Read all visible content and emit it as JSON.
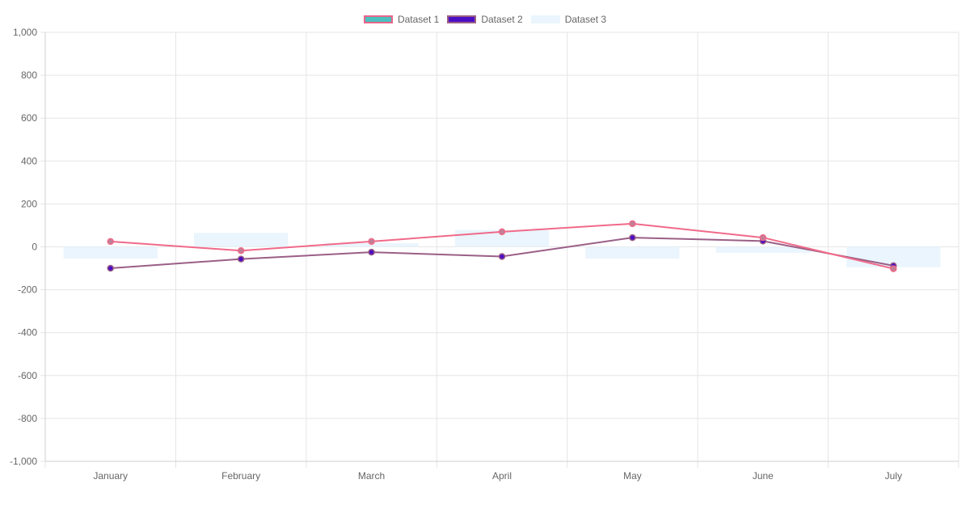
{
  "chart_data": {
    "type": "bar",
    "categories": [
      "January",
      "February",
      "March",
      "April",
      "May",
      "June",
      "July"
    ],
    "ylim": [
      -1000,
      1000
    ],
    "y_ticks": [
      1000,
      800,
      600,
      400,
      200,
      0,
      -200,
      -400,
      -600,
      -800,
      -1000
    ],
    "y_tick_labels": [
      "1,000",
      "800",
      "600",
      "400",
      "200",
      "0",
      "-200",
      "-400",
      "-600",
      "-800",
      "-1,000"
    ],
    "grid": true,
    "legend_position": "top",
    "series": [
      {
        "name": "Dataset 1",
        "type": "line",
        "values": [
          25,
          -18,
          25,
          70,
          108,
          43,
          -102
        ],
        "line_color": "#f06a89",
        "point_fill": "#c07f97",
        "legend_fill": "#4bc0c0",
        "legend_border": "#e8648a"
      },
      {
        "name": "Dataset 2",
        "type": "line",
        "values": [
          -100,
          -57,
          -25,
          -45,
          43,
          27,
          -88
        ],
        "line_color": "#9a5f86",
        "point_fill": "#4b0ec4",
        "legend_fill": "#4b0ec4",
        "legend_border": "#9a5f86"
      },
      {
        "name": "Dataset 3",
        "type": "bar",
        "values": [
          -55,
          65,
          17,
          78,
          -55,
          -28,
          -95
        ],
        "bar_color": "#eaf5fd",
        "legend_fill": "#eaf5fd",
        "legend_border": "#eaf5fd"
      }
    ]
  }
}
